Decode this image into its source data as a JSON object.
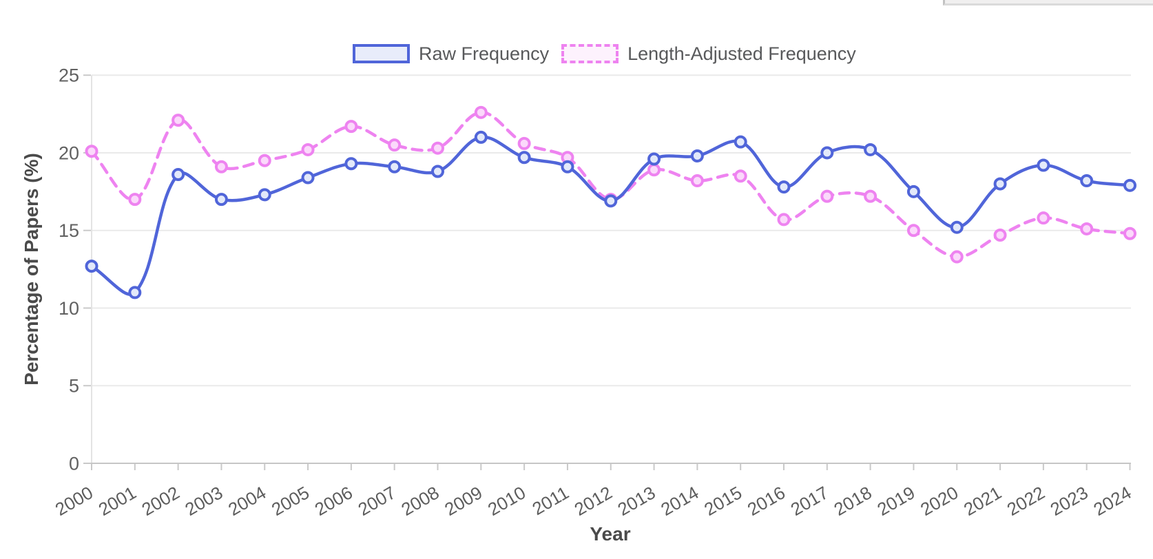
{
  "page": {
    "background": "#ffffff",
    "top_right_fragment": {
      "fill": "#f0efef",
      "border": "#c2c2c2"
    }
  },
  "chart_data": {
    "type": "line",
    "title": "",
    "xlabel": "Year",
    "ylabel": "Percentage of Papers (%)",
    "legend_position": "top",
    "grid": "horizontal",
    "ylim": [
      0,
      25
    ],
    "yticks": [
      0,
      5,
      10,
      15,
      20,
      25
    ],
    "x": [
      2000,
      2001,
      2002,
      2003,
      2004,
      2005,
      2006,
      2007,
      2008,
      2009,
      2010,
      2011,
      2012,
      2013,
      2014,
      2015,
      2016,
      2017,
      2018,
      2019,
      2020,
      2021,
      2022,
      2023,
      2024
    ],
    "series": [
      {
        "name": "Raw Frequency",
        "style": "solid",
        "color": "#5065d9",
        "fill_light": "#e8ecfa",
        "marker_fill": "#e3e9fa",
        "values": [
          12.7,
          11.0,
          18.6,
          17.0,
          17.3,
          18.4,
          19.3,
          19.1,
          18.8,
          21.0,
          19.7,
          19.1,
          16.9,
          19.6,
          19.8,
          20.7,
          17.8,
          20.0,
          20.2,
          17.5,
          15.2,
          18.0,
          19.2,
          18.2,
          17.9
        ]
      },
      {
        "name": "Length-Adjusted Frequency",
        "style": "dashed",
        "color": "#ee83f0",
        "fill_light": "#fdf2fd",
        "marker_fill": "#fbd9fb",
        "values": [
          20.1,
          17.0,
          22.1,
          19.1,
          19.5,
          20.2,
          21.7,
          20.5,
          20.3,
          22.6,
          20.6,
          19.7,
          17.0,
          18.9,
          18.2,
          18.5,
          15.7,
          17.2,
          17.2,
          15.0,
          13.3,
          14.7,
          15.8,
          15.1,
          14.8
        ]
      }
    ]
  }
}
